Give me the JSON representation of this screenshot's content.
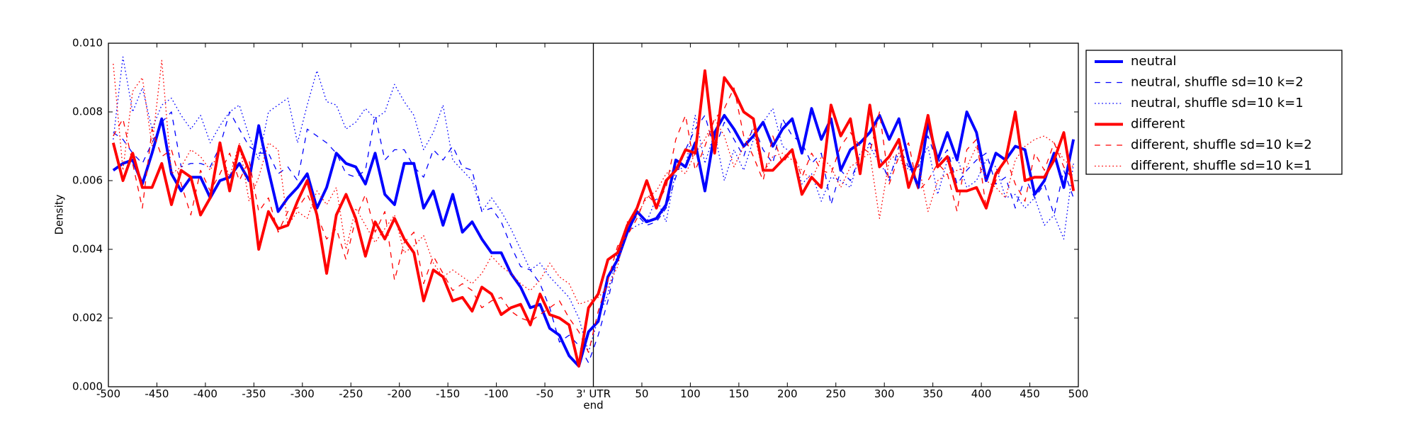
{
  "chart_data": {
    "type": "line",
    "ylabel": "Density",
    "x": [
      -495,
      -485,
      -475,
      -465,
      -455,
      -445,
      -435,
      -425,
      -415,
      -405,
      -395,
      -385,
      -375,
      -365,
      -355,
      -345,
      -335,
      -325,
      -315,
      -305,
      -295,
      -285,
      -275,
      -265,
      -255,
      -245,
      -235,
      -225,
      -215,
      -205,
      -195,
      -185,
      -175,
      -165,
      -155,
      -145,
      -135,
      -125,
      -115,
      -105,
      -95,
      -85,
      -75,
      -65,
      -55,
      -45,
      -35,
      -25,
      -15,
      -5,
      5,
      15,
      25,
      35,
      45,
      55,
      65,
      75,
      85,
      95,
      105,
      115,
      125,
      135,
      145,
      155,
      165,
      175,
      185,
      195,
      205,
      215,
      225,
      235,
      245,
      255,
      265,
      275,
      285,
      295,
      305,
      315,
      325,
      335,
      345,
      355,
      365,
      375,
      385,
      395,
      405,
      415,
      425,
      435,
      445,
      455,
      465,
      475,
      485,
      495
    ],
    "series": [
      {
        "name": "neutral",
        "color": "#0000ff",
        "linestyle": "solid",
        "linewidth": 3,
        "values": [
          0.0063,
          0.0065,
          0.0066,
          0.0059,
          0.0068,
          0.0078,
          0.0062,
          0.0057,
          0.0061,
          0.0061,
          0.0055,
          0.006,
          0.0061,
          0.0065,
          0.006,
          0.0076,
          0.0063,
          0.0051,
          0.0055,
          0.0058,
          0.0062,
          0.0052,
          0.0058,
          0.0068,
          0.0065,
          0.0064,
          0.0059,
          0.0068,
          0.0056,
          0.0053,
          0.0065,
          0.0065,
          0.0052,
          0.0057,
          0.0047,
          0.0056,
          0.0045,
          0.0048,
          0.0043,
          0.0039,
          0.0039,
          0.0033,
          0.0029,
          0.0023,
          0.0024,
          0.0017,
          0.0015,
          0.0009,
          0.0006,
          0.0016,
          0.0019,
          0.0032,
          0.0037,
          0.0045,
          0.0051,
          0.0048,
          0.0049,
          0.0053,
          0.0066,
          0.0064,
          0.0071,
          0.0057,
          0.0074,
          0.0079,
          0.0075,
          0.007,
          0.0073,
          0.0077,
          0.007,
          0.0075,
          0.0078,
          0.0068,
          0.0081,
          0.0072,
          0.0078,
          0.0063,
          0.0069,
          0.0071,
          0.0074,
          0.0079,
          0.0072,
          0.0078,
          0.0066,
          0.0058,
          0.0077,
          0.0066,
          0.0074,
          0.0066,
          0.008,
          0.0074,
          0.006,
          0.0068,
          0.0066,
          0.007,
          0.0069,
          0.0056,
          0.006,
          0.0068,
          0.0058,
          0.0072
        ]
      },
      {
        "name": "neutral, shuffle sd=10 k=2",
        "color": "#0000ff",
        "linestyle": "dashed",
        "linewidth": 1,
        "values": [
          0.0074,
          0.0072,
          0.0068,
          0.0065,
          0.0071,
          0.0077,
          0.008,
          0.0064,
          0.0065,
          0.0065,
          0.0064,
          0.007,
          0.008,
          0.0075,
          0.007,
          0.0068,
          0.0068,
          0.0062,
          0.0064,
          0.006,
          0.0075,
          0.0073,
          0.0071,
          0.0068,
          0.0062,
          0.0061,
          0.0063,
          0.0079,
          0.0066,
          0.0069,
          0.0069,
          0.0064,
          0.0061,
          0.0069,
          0.0066,
          0.007,
          0.0064,
          0.0063,
          0.0051,
          0.0052,
          0.0048,
          0.0041,
          0.0035,
          0.0034,
          0.003,
          0.0023,
          0.0013,
          0.0015,
          0.0012,
          0.0007,
          0.0015,
          0.0025,
          0.0038,
          0.0045,
          0.005,
          0.0047,
          0.0048,
          0.0052,
          0.0061,
          0.0069,
          0.0075,
          0.0079,
          0.0069,
          0.0077,
          0.0072,
          0.0067,
          0.0076,
          0.0069,
          0.0065,
          0.0078,
          0.0073,
          0.0071,
          0.0065,
          0.0068,
          0.0053,
          0.0063,
          0.006,
          0.0067,
          0.0071,
          0.0067,
          0.006,
          0.007,
          0.0064,
          0.0064,
          0.0073,
          0.0065,
          0.0069,
          0.0059,
          0.0063,
          0.0066,
          0.0068,
          0.0059,
          0.0061,
          0.0052,
          0.0061,
          0.0055,
          0.0059,
          0.005,
          0.0063,
          0.0055
        ]
      },
      {
        "name": "neutral, shuffle sd=10 k=1",
        "color": "#0000ff",
        "linestyle": "dotted",
        "linewidth": 1,
        "values": [
          0.0072,
          0.0096,
          0.008,
          0.0087,
          0.0075,
          0.0082,
          0.0084,
          0.0079,
          0.0075,
          0.0079,
          0.0071,
          0.0076,
          0.008,
          0.0082,
          0.0073,
          0.0066,
          0.008,
          0.0082,
          0.0084,
          0.0071,
          0.0082,
          0.0092,
          0.0083,
          0.0082,
          0.0075,
          0.0077,
          0.0081,
          0.0078,
          0.008,
          0.0088,
          0.0083,
          0.0079,
          0.0069,
          0.0074,
          0.0082,
          0.0066,
          0.0063,
          0.006,
          0.0051,
          0.0055,
          0.0051,
          0.0046,
          0.004,
          0.0034,
          0.0036,
          0.0032,
          0.0029,
          0.0026,
          0.002,
          0.001,
          0.002,
          0.0027,
          0.0039,
          0.0045,
          0.0047,
          0.0048,
          0.0055,
          0.0048,
          0.0063,
          0.0064,
          0.0079,
          0.0065,
          0.0074,
          0.006,
          0.0069,
          0.0063,
          0.0072,
          0.0077,
          0.0081,
          0.007,
          0.0068,
          0.0059,
          0.0062,
          0.0054,
          0.0061,
          0.006,
          0.0058,
          0.0068,
          0.007,
          0.0065,
          0.0061,
          0.0068,
          0.0063,
          0.0064,
          0.007,
          0.0056,
          0.0066,
          0.0067,
          0.0058,
          0.006,
          0.0066,
          0.0064,
          0.0055,
          0.0056,
          0.0052,
          0.0055,
          0.0047,
          0.005,
          0.0043,
          0.0065
        ]
      },
      {
        "name": "different",
        "color": "#ff0000",
        "linestyle": "solid",
        "linewidth": 3,
        "values": [
          0.0071,
          0.006,
          0.0068,
          0.0058,
          0.0058,
          0.0065,
          0.0053,
          0.0063,
          0.0061,
          0.005,
          0.0055,
          0.0071,
          0.0057,
          0.007,
          0.0063,
          0.004,
          0.0051,
          0.0046,
          0.0047,
          0.0054,
          0.006,
          0.005,
          0.0033,
          0.005,
          0.0056,
          0.0049,
          0.0038,
          0.0048,
          0.0043,
          0.0049,
          0.0043,
          0.0039,
          0.0025,
          0.0034,
          0.0032,
          0.0025,
          0.0026,
          0.0022,
          0.0029,
          0.0027,
          0.0021,
          0.0023,
          0.0024,
          0.0018,
          0.0027,
          0.0021,
          0.002,
          0.0018,
          0.0006,
          0.0023,
          0.0027,
          0.0037,
          0.0039,
          0.0047,
          0.0052,
          0.006,
          0.0052,
          0.006,
          0.0063,
          0.0069,
          0.0068,
          0.0092,
          0.0068,
          0.009,
          0.0086,
          0.008,
          0.0078,
          0.0063,
          0.0063,
          0.0066,
          0.0069,
          0.0056,
          0.0061,
          0.0058,
          0.0082,
          0.0073,
          0.0078,
          0.0062,
          0.0082,
          0.0064,
          0.0067,
          0.0072,
          0.0058,
          0.0066,
          0.0079,
          0.0064,
          0.0067,
          0.0057,
          0.0057,
          0.0058,
          0.0052,
          0.0062,
          0.0066,
          0.008,
          0.006,
          0.0061,
          0.0061,
          0.0066,
          0.0074,
          0.0057
        ]
      },
      {
        "name": "different, shuffle sd=10 k=2",
        "color": "#ff0000",
        "linestyle": "dashed",
        "linewidth": 1,
        "values": [
          0.0073,
          0.0078,
          0.0065,
          0.0052,
          0.0075,
          0.0067,
          0.0069,
          0.0059,
          0.005,
          0.0063,
          0.0057,
          0.0062,
          0.0068,
          0.006,
          0.0066,
          0.0051,
          0.0055,
          0.0045,
          0.0051,
          0.0052,
          0.0056,
          0.005,
          0.0043,
          0.0046,
          0.0037,
          0.0049,
          0.0056,
          0.0045,
          0.0051,
          0.0031,
          0.0042,
          0.0045,
          0.003,
          0.0038,
          0.0033,
          0.0028,
          0.003,
          0.0028,
          0.0023,
          0.0025,
          0.0026,
          0.0022,
          0.002,
          0.0019,
          0.0021,
          0.0023,
          0.0025,
          0.002,
          0.0016,
          0.001,
          0.0022,
          0.0031,
          0.0041,
          0.0044,
          0.0049,
          0.0056,
          0.0053,
          0.0058,
          0.0072,
          0.0079,
          0.0063,
          0.007,
          0.0078,
          0.0081,
          0.0087,
          0.0073,
          0.0067,
          0.006,
          0.0073,
          0.0065,
          0.0069,
          0.0061,
          0.0068,
          0.0063,
          0.0062,
          0.007,
          0.0074,
          0.007,
          0.0068,
          0.008,
          0.0059,
          0.0067,
          0.0071,
          0.0057,
          0.006,
          0.0065,
          0.0062,
          0.0051,
          0.0069,
          0.0072,
          0.0052,
          0.006,
          0.0067,
          0.0059,
          0.0054,
          0.0068,
          0.0063,
          0.0071,
          0.0064,
          0.006
        ]
      },
      {
        "name": "different, shuffle sd=10 k=1",
        "color": "#ff0000",
        "linestyle": "dotted",
        "linewidth": 1,
        "values": [
          0.0094,
          0.0063,
          0.0086,
          0.009,
          0.007,
          0.0095,
          0.0062,
          0.0064,
          0.0069,
          0.0067,
          0.0063,
          0.0069,
          0.0061,
          0.0071,
          0.0054,
          0.0061,
          0.0071,
          0.0069,
          0.0047,
          0.0051,
          0.0049,
          0.0057,
          0.0053,
          0.0058,
          0.004,
          0.0052,
          0.0047,
          0.0042,
          0.0046,
          0.005,
          0.0039,
          0.0041,
          0.0044,
          0.0036,
          0.0032,
          0.0034,
          0.0032,
          0.003,
          0.0033,
          0.0038,
          0.0035,
          0.0033,
          0.003,
          0.0028,
          0.0031,
          0.0036,
          0.0032,
          0.003,
          0.0024,
          0.0025,
          0.0026,
          0.0029,
          0.0035,
          0.0048,
          0.005,
          0.0055,
          0.0057,
          0.0062,
          0.0064,
          0.0062,
          0.0068,
          0.0072,
          0.0078,
          0.0073,
          0.0064,
          0.007,
          0.0075,
          0.0062,
          0.0067,
          0.0068,
          0.0066,
          0.0063,
          0.006,
          0.0067,
          0.0064,
          0.0058,
          0.0064,
          0.0066,
          0.0068,
          0.0049,
          0.0066,
          0.0068,
          0.0059,
          0.0065,
          0.0051,
          0.006,
          0.0062,
          0.0063,
          0.0064,
          0.007,
          0.006,
          0.0058,
          0.0055,
          0.0066,
          0.007,
          0.0072,
          0.0073,
          0.0071,
          0.0066,
          0.0064
        ]
      }
    ],
    "xlim": [
      -500,
      500
    ],
    "xticks": [
      -500,
      -450,
      -400,
      -350,
      -300,
      -250,
      -200,
      -150,
      -100,
      -50,
      {
        "value": 0,
        "label": "3' UTR end"
      },
      50,
      100,
      150,
      200,
      250,
      300,
      350,
      400,
      450,
      500
    ],
    "ylim": [
      0,
      0.01
    ],
    "yticks": [
      {
        "value": 0,
        "label": "0.000"
      },
      {
        "value": 0.002,
        "label": "0.002"
      },
      {
        "value": 0.004,
        "label": "0.004"
      },
      {
        "value": 0.006,
        "label": "0.006"
      },
      {
        "value": 0.008,
        "label": "0.008"
      },
      {
        "value": 0.01,
        "label": "0.010"
      }
    ],
    "vlines": [
      0
    ],
    "grid": false,
    "legend": "right"
  }
}
